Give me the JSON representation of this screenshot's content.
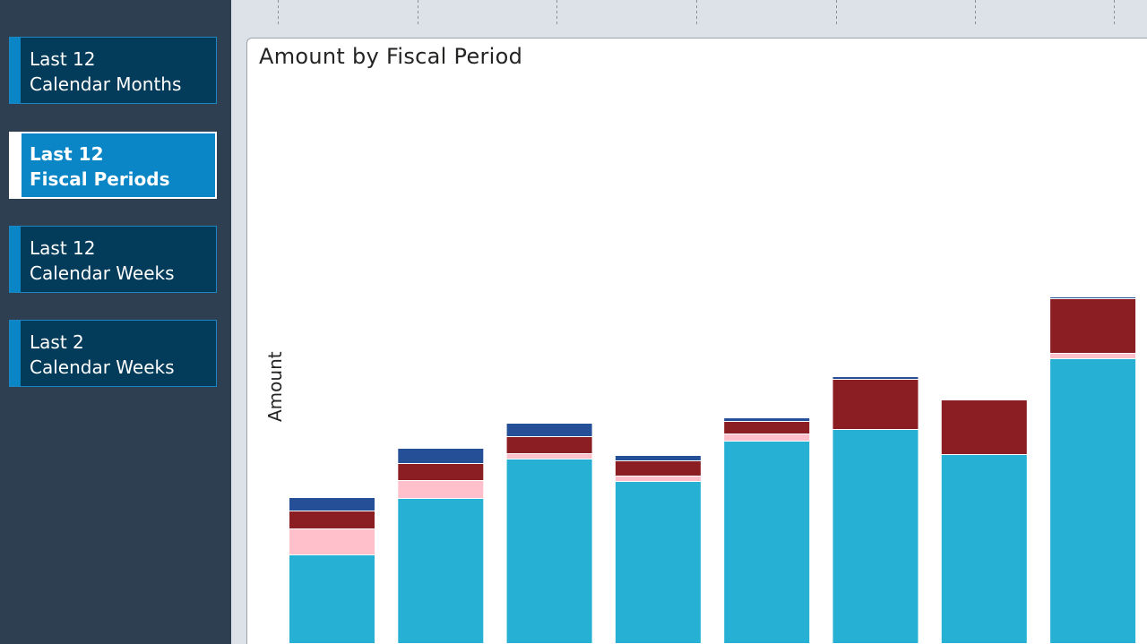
{
  "sidebar": {
    "buttons": [
      {
        "line1": "Last 12",
        "line2": "Calendar Months",
        "selected": false
      },
      {
        "line1": "Last 12",
        "line2": "Fiscal Periods",
        "selected": true
      },
      {
        "line1": "Last 12",
        "line2": "Calendar Weeks",
        "selected": false
      },
      {
        "line1": "Last 2",
        "line2": "Calendar Weeks",
        "selected": false
      }
    ]
  },
  "colors": {
    "series_1": "#25b0d4",
    "series_2": "#ffc0cb",
    "series_3": "#8b1e22",
    "series_4": "#254f96"
  },
  "chart_data": {
    "type": "bar",
    "stacked": true,
    "title": "Amount by Fiscal Period",
    "xlabel": "",
    "ylabel": "Amount",
    "ylim": [
      0,
      640
    ],
    "categories": [
      "",
      "",
      "",
      "",
      "",
      "",
      "",
      ""
    ],
    "series": [
      {
        "values": [
          99,
          162,
          206,
          181,
          226,
          239,
          211,
          318
        ]
      },
      {
        "values": [
          29,
          20,
          6,
          6,
          8,
          0,
          0,
          6
        ]
      },
      {
        "values": [
          20,
          19,
          19,
          17,
          14,
          56,
          61,
          61
        ]
      },
      {
        "values": [
          15,
          17,
          15,
          6,
          4,
          3,
          0,
          2
        ]
      }
    ],
    "legend": "none",
    "grid": false
  }
}
